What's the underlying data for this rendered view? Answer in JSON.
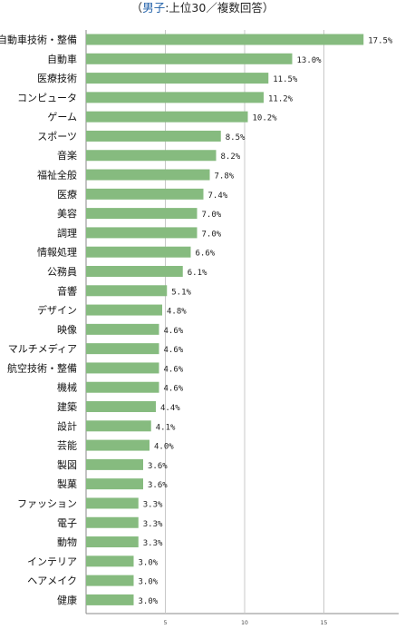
{
  "title": {
    "open": "（",
    "accent": "男子",
    "rest": ":上位30／複数回答）"
  },
  "chart_data": {
    "type": "bar",
    "orientation": "horizontal",
    "title": "（男子:上位30／複数回答）",
    "xlim": [
      0,
      20
    ],
    "xticks": [
      5,
      10,
      15
    ],
    "grid": true,
    "color": "#86bb7f",
    "value_suffix": "%",
    "categories": [
      "自動車技術・整備",
      "自動車",
      "医療技術",
      "コンピュータ",
      "ゲーム",
      "スポーツ",
      "音楽",
      "福祉全般",
      "医療",
      "美容",
      "調理",
      "情報処理",
      "公務員",
      "音響",
      "デザイン",
      "映像",
      "マルチメディア",
      "航空技術・整備",
      "機械",
      "建築",
      "設計",
      "芸能",
      "製図",
      "製菓",
      "ファッション",
      "電子",
      "動物",
      "インテリア",
      "ヘアメイク",
      "健康"
    ],
    "values": [
      17.5,
      13.0,
      11.5,
      11.2,
      10.2,
      8.5,
      8.2,
      7.8,
      7.4,
      7.0,
      7.0,
      6.6,
      6.1,
      5.1,
      4.8,
      4.6,
      4.6,
      4.6,
      4.6,
      4.4,
      4.1,
      4.0,
      3.6,
      3.6,
      3.3,
      3.3,
      3.3,
      3.0,
      3.0,
      3.0
    ]
  }
}
